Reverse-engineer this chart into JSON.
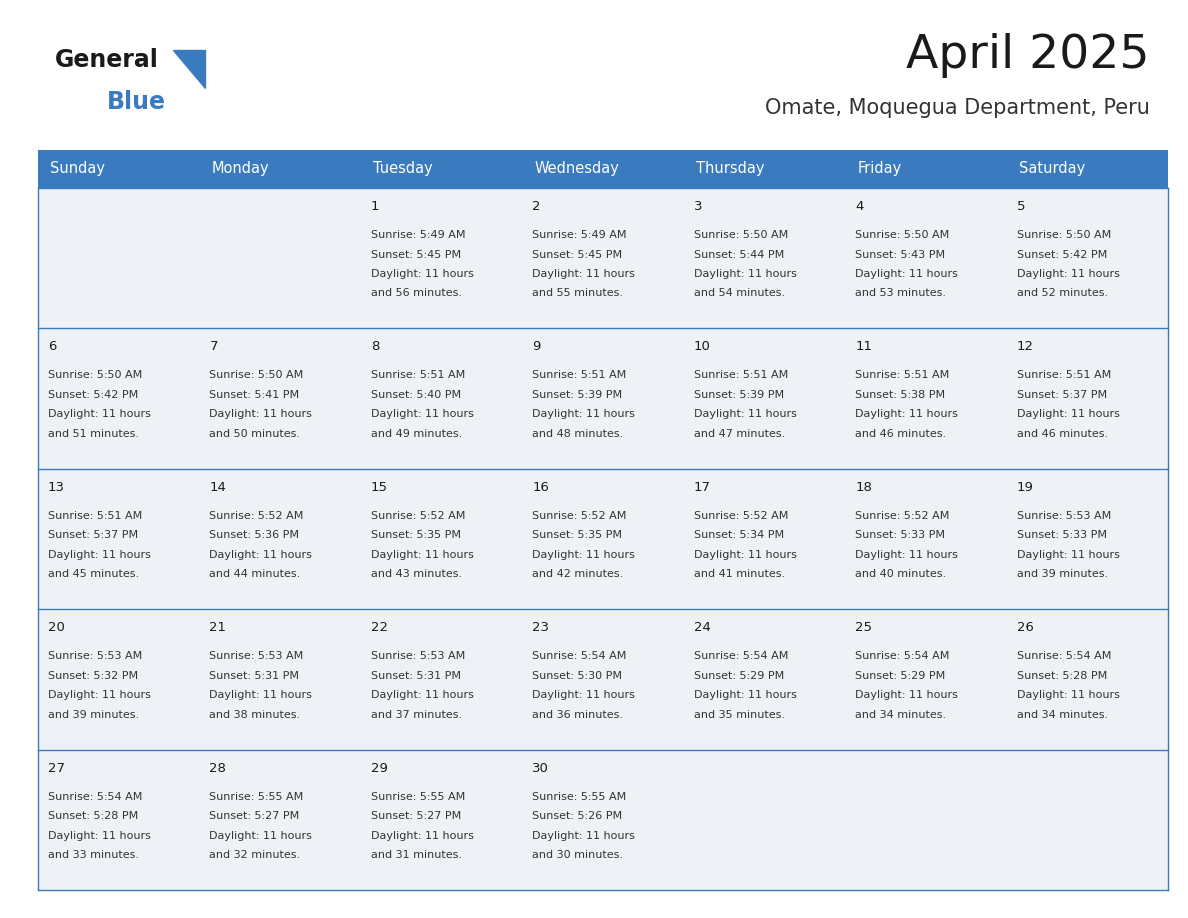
{
  "title": "April 2025",
  "subtitle": "Omate, Moquegua Department, Peru",
  "header_bg_color": "#3a7bbf",
  "header_text_color": "#ffffff",
  "row_bg_color": "#eef2f7",
  "row_line_color": "#3a7bbf",
  "days_of_week": [
    "Sunday",
    "Monday",
    "Tuesday",
    "Wednesday",
    "Thursday",
    "Friday",
    "Saturday"
  ],
  "calendar_data": [
    [
      {
        "day": "",
        "sunrise": "",
        "sunset": "",
        "daylight": ""
      },
      {
        "day": "",
        "sunrise": "",
        "sunset": "",
        "daylight": ""
      },
      {
        "day": "1",
        "sunrise": "5:49 AM",
        "sunset": "5:45 PM",
        "daylight": "11 hours and 56 minutes."
      },
      {
        "day": "2",
        "sunrise": "5:49 AM",
        "sunset": "5:45 PM",
        "daylight": "11 hours and 55 minutes."
      },
      {
        "day": "3",
        "sunrise": "5:50 AM",
        "sunset": "5:44 PM",
        "daylight": "11 hours and 54 minutes."
      },
      {
        "day": "4",
        "sunrise": "5:50 AM",
        "sunset": "5:43 PM",
        "daylight": "11 hours and 53 minutes."
      },
      {
        "day": "5",
        "sunrise": "5:50 AM",
        "sunset": "5:42 PM",
        "daylight": "11 hours and 52 minutes."
      }
    ],
    [
      {
        "day": "6",
        "sunrise": "5:50 AM",
        "sunset": "5:42 PM",
        "daylight": "11 hours and 51 minutes."
      },
      {
        "day": "7",
        "sunrise": "5:50 AM",
        "sunset": "5:41 PM",
        "daylight": "11 hours and 50 minutes."
      },
      {
        "day": "8",
        "sunrise": "5:51 AM",
        "sunset": "5:40 PM",
        "daylight": "11 hours and 49 minutes."
      },
      {
        "day": "9",
        "sunrise": "5:51 AM",
        "sunset": "5:39 PM",
        "daylight": "11 hours and 48 minutes."
      },
      {
        "day": "10",
        "sunrise": "5:51 AM",
        "sunset": "5:39 PM",
        "daylight": "11 hours and 47 minutes."
      },
      {
        "day": "11",
        "sunrise": "5:51 AM",
        "sunset": "5:38 PM",
        "daylight": "11 hours and 46 minutes."
      },
      {
        "day": "12",
        "sunrise": "5:51 AM",
        "sunset": "5:37 PM",
        "daylight": "11 hours and 46 minutes."
      }
    ],
    [
      {
        "day": "13",
        "sunrise": "5:51 AM",
        "sunset": "5:37 PM",
        "daylight": "11 hours and 45 minutes."
      },
      {
        "day": "14",
        "sunrise": "5:52 AM",
        "sunset": "5:36 PM",
        "daylight": "11 hours and 44 minutes."
      },
      {
        "day": "15",
        "sunrise": "5:52 AM",
        "sunset": "5:35 PM",
        "daylight": "11 hours and 43 minutes."
      },
      {
        "day": "16",
        "sunrise": "5:52 AM",
        "sunset": "5:35 PM",
        "daylight": "11 hours and 42 minutes."
      },
      {
        "day": "17",
        "sunrise": "5:52 AM",
        "sunset": "5:34 PM",
        "daylight": "11 hours and 41 minutes."
      },
      {
        "day": "18",
        "sunrise": "5:52 AM",
        "sunset": "5:33 PM",
        "daylight": "11 hours and 40 minutes."
      },
      {
        "day": "19",
        "sunrise": "5:53 AM",
        "sunset": "5:33 PM",
        "daylight": "11 hours and 39 minutes."
      }
    ],
    [
      {
        "day": "20",
        "sunrise": "5:53 AM",
        "sunset": "5:32 PM",
        "daylight": "11 hours and 39 minutes."
      },
      {
        "day": "21",
        "sunrise": "5:53 AM",
        "sunset": "5:31 PM",
        "daylight": "11 hours and 38 minutes."
      },
      {
        "day": "22",
        "sunrise": "5:53 AM",
        "sunset": "5:31 PM",
        "daylight": "11 hours and 37 minutes."
      },
      {
        "day": "23",
        "sunrise": "5:54 AM",
        "sunset": "5:30 PM",
        "daylight": "11 hours and 36 minutes."
      },
      {
        "day": "24",
        "sunrise": "5:54 AM",
        "sunset": "5:29 PM",
        "daylight": "11 hours and 35 minutes."
      },
      {
        "day": "25",
        "sunrise": "5:54 AM",
        "sunset": "5:29 PM",
        "daylight": "11 hours and 34 minutes."
      },
      {
        "day": "26",
        "sunrise": "5:54 AM",
        "sunset": "5:28 PM",
        "daylight": "11 hours and 34 minutes."
      }
    ],
    [
      {
        "day": "27",
        "sunrise": "5:54 AM",
        "sunset": "5:28 PM",
        "daylight": "11 hours and 33 minutes."
      },
      {
        "day": "28",
        "sunrise": "5:55 AM",
        "sunset": "5:27 PM",
        "daylight": "11 hours and 32 minutes."
      },
      {
        "day": "29",
        "sunrise": "5:55 AM",
        "sunset": "5:27 PM",
        "daylight": "11 hours and 31 minutes."
      },
      {
        "day": "30",
        "sunrise": "5:55 AM",
        "sunset": "5:26 PM",
        "daylight": "11 hours and 30 minutes."
      },
      {
        "day": "",
        "sunrise": "",
        "sunset": "",
        "daylight": ""
      },
      {
        "day": "",
        "sunrise": "",
        "sunset": "",
        "daylight": ""
      },
      {
        "day": "",
        "sunrise": "",
        "sunset": "",
        "daylight": ""
      }
    ]
  ],
  "logo_general_color": "#1a1a1a",
  "logo_blue_color": "#3a7bbf",
  "logo_triangle_color": "#3a7bbf",
  "title_color": "#1a1a1a",
  "subtitle_color": "#333333",
  "cell_text_color": "#333333",
  "day_num_color": "#1a1a1a",
  "cell_text_size": 8.0,
  "day_num_size": 9.5,
  "header_font_size": 10.5,
  "title_font_size": 34,
  "subtitle_font_size": 15
}
